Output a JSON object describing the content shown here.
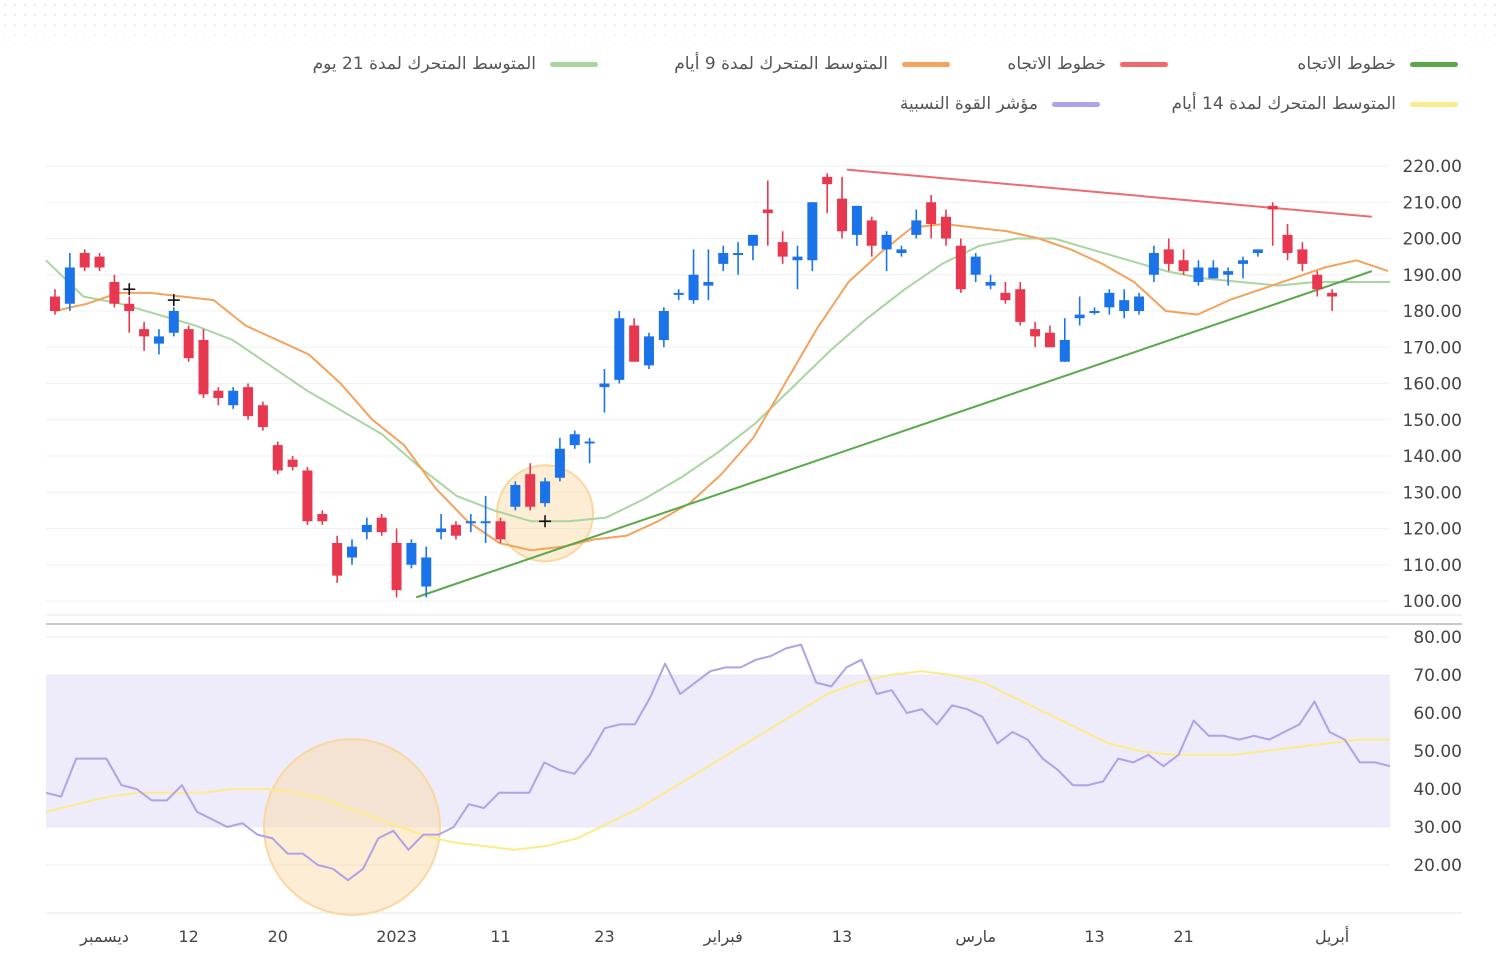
{
  "legend": [
    {
      "label": "خطوط الاتجاه",
      "color": "#5aa84b"
    },
    {
      "label": "خطوط الاتجاه",
      "color": "#ef6a6a"
    },
    {
      "label": "المتوسط المتحرك لمدة 9 أيام",
      "color": "#f4a25c"
    },
    {
      "label": "المتوسط المتحرك لمدة 21 يوم",
      "color": "#a8d5a0"
    },
    {
      "label": "المتوسط المتحرك لمدة 14 أيام",
      "color": "#fbeb8a"
    },
    {
      "label": "مؤشر القوة النسبية",
      "color": "#b0a2e6"
    }
  ],
  "colors": {
    "up": "#1a73e8",
    "down": "#e8384f",
    "ma9": "#f4a25c",
    "ma21": "#a8d5a0",
    "trend_up": "#5aa84b",
    "trend_down": "#ef6a6a",
    "rsi": "#b0a2e6",
    "rsi_ma": "#fbeb8a",
    "rsi_band": "#eeebfb",
    "highlight": "#fbd7a0"
  },
  "chart_data": {
    "type": "candlestick",
    "price_axis": {
      "ylim": [
        100,
        220
      ],
      "ticks": [
        "220.00",
        "210.00",
        "200.00",
        "190.00",
        "180.00",
        "170.00",
        "160.00",
        "150.00",
        "140.00",
        "130.00",
        "120.00",
        "110.00",
        "100.00"
      ]
    },
    "rsi_axis": {
      "ylim": [
        20,
        80
      ],
      "band": [
        30,
        70
      ],
      "ticks": [
        "80.00",
        "70.00",
        "60.00",
        "50.00",
        "40.00",
        "30.00",
        "20.00"
      ]
    },
    "x_labels": [
      {
        "label": "ديسمبر",
        "i": 3
      },
      {
        "label": "12",
        "i": 9
      },
      {
        "label": "20",
        "i": 15
      },
      {
        "label": "2023",
        "i": 23
      },
      {
        "label": "11",
        "i": 30
      },
      {
        "label": "23",
        "i": 37
      },
      {
        "label": "فبراير",
        "i": 45
      },
      {
        "label": "13",
        "i": 53
      },
      {
        "label": "مارس",
        "i": 62
      },
      {
        "label": "13",
        "i": 70
      },
      {
        "label": "21",
        "i": 76
      },
      {
        "label": "أبريل",
        "i": 86
      }
    ],
    "candles": [
      [
        184,
        180,
        186,
        179
      ],
      [
        182,
        192,
        196,
        180
      ],
      [
        196,
        192,
        197,
        191
      ],
      [
        195,
        192,
        196,
        191
      ],
      [
        188,
        182,
        190,
        181
      ],
      [
        182,
        180,
        184,
        174
      ],
      [
        175,
        173,
        177,
        169
      ],
      [
        171,
        173,
        175,
        168
      ],
      [
        174,
        180,
        181,
        173
      ],
      [
        175,
        167,
        176,
        166
      ],
      [
        172,
        157,
        175,
        156
      ],
      [
        158,
        156,
        159,
        154
      ],
      [
        154,
        158,
        159,
        153
      ],
      [
        159,
        151,
        160,
        150
      ],
      [
        154,
        148,
        155,
        147
      ],
      [
        143,
        136,
        144,
        135
      ],
      [
        139,
        137,
        140,
        136
      ],
      [
        136,
        122,
        137,
        121
      ],
      [
        124,
        122,
        125,
        121
      ],
      [
        116,
        107,
        118,
        105
      ],
      [
        112,
        115,
        117,
        110
      ],
      [
        119,
        121,
        123,
        117
      ],
      [
        123,
        119,
        124,
        118
      ],
      [
        116,
        103,
        120,
        101
      ],
      [
        110,
        116,
        117,
        109
      ],
      [
        104,
        112,
        115,
        101
      ],
      [
        119,
        120,
        124,
        117
      ],
      [
        121,
        118,
        122,
        117
      ],
      [
        122,
        122,
        124,
        119
      ],
      [
        122,
        122,
        129,
        116
      ],
      [
        122,
        117,
        123,
        116
      ],
      [
        126,
        132,
        133,
        125
      ],
      [
        135,
        126,
        138,
        125
      ],
      [
        127,
        133,
        134,
        126
      ],
      [
        134,
        142,
        145,
        133
      ],
      [
        143,
        146,
        147,
        142
      ],
      [
        144,
        144,
        145,
        138
      ],
      [
        159,
        160,
        164,
        152
      ],
      [
        161,
        178,
        180,
        160
      ],
      [
        176,
        166,
        178,
        166
      ],
      [
        165,
        173,
        174,
        164
      ],
      [
        172,
        180,
        181,
        170
      ],
      [
        185,
        185,
        186,
        183
      ],
      [
        183,
        190,
        197,
        182
      ],
      [
        187,
        188,
        197,
        183
      ],
      [
        193,
        196,
        198,
        191
      ],
      [
        196,
        196,
        199,
        190
      ],
      [
        198,
        201,
        201,
        194
      ],
      [
        208,
        207,
        216,
        198
      ],
      [
        199,
        195,
        202,
        193
      ],
      [
        194,
        195,
        198,
        186
      ],
      [
        194,
        210,
        210,
        191
      ],
      [
        217,
        215,
        218,
        207
      ],
      [
        211,
        202,
        217,
        200
      ],
      [
        201,
        209,
        209,
        198
      ],
      [
        205,
        198,
        206,
        195
      ],
      [
        197,
        201,
        202,
        191
      ],
      [
        196,
        197,
        198,
        195
      ],
      [
        201,
        205,
        208,
        200
      ],
      [
        210,
        204,
        212,
        200
      ],
      [
        206,
        200,
        208,
        198
      ],
      [
        198,
        186,
        200,
        185
      ],
      [
        190,
        195,
        196,
        188
      ],
      [
        187,
        188,
        190,
        186
      ],
      [
        185,
        183,
        188,
        182
      ],
      [
        186,
        177,
        188,
        176
      ],
      [
        175,
        173,
        177,
        170
      ],
      [
        174,
        170,
        176,
        170
      ],
      [
        166,
        172,
        178,
        166
      ],
      [
        178,
        179,
        184,
        176
      ],
      [
        180,
        180,
        181,
        179
      ],
      [
        181,
        185,
        186,
        179
      ],
      [
        180,
        183,
        186,
        178
      ],
      [
        180,
        184,
        185,
        179
      ],
      [
        190,
        196,
        198,
        188
      ],
      [
        197,
        193,
        200,
        191
      ],
      [
        194,
        191,
        197,
        190
      ],
      [
        188,
        192,
        194,
        187
      ],
      [
        189,
        192,
        194,
        189
      ],
      [
        190,
        191,
        192,
        187
      ],
      [
        193,
        194,
        195,
        189
      ],
      [
        196,
        197,
        197,
        195
      ],
      [
        209,
        208,
        210,
        198
      ],
      [
        201,
        196,
        204,
        194
      ],
      [
        197,
        193,
        199,
        191
      ],
      [
        190,
        186,
        191,
        184
      ],
      [
        185,
        184,
        186,
        180
      ]
    ],
    "ma9": [
      180,
      182,
      185,
      185,
      184,
      183,
      176,
      172,
      168,
      160,
      150,
      143,
      131,
      122,
      116,
      114,
      115,
      117,
      118,
      122,
      127,
      135,
      145,
      160,
      175,
      188,
      196,
      203,
      204,
      203,
      202,
      200,
      197,
      193,
      188,
      180,
      179,
      183,
      186,
      189,
      192,
      194,
      191
    ],
    "ma21": [
      194,
      184,
      182,
      179,
      176,
      172,
      165,
      158,
      152,
      146,
      137,
      129,
      125,
      122,
      122,
      123,
      128,
      134,
      141,
      149,
      159,
      169,
      178,
      186,
      193,
      198,
      200,
      200,
      197,
      194,
      191,
      189,
      188,
      187,
      188,
      188,
      188
    ],
    "trend_lines": [
      {
        "from": [
          25,
          101
        ],
        "to": [
          88,
          191
        ]
      },
      {
        "from": [
          54,
          219
        ],
        "to": [
          88,
          206
        ]
      }
    ],
    "rsi": [
      39,
      38,
      48,
      48,
      48,
      41,
      40,
      37,
      37,
      41,
      34,
      32,
      30,
      31,
      28,
      27,
      23,
      23,
      20,
      19,
      16,
      19,
      27,
      29,
      24,
      28,
      28,
      30,
      36,
      35,
      39,
      39,
      39,
      47,
      45,
      44,
      49,
      56,
      57,
      57,
      64,
      73,
      65,
      68,
      71,
      72,
      72,
      74,
      75,
      77,
      78,
      68,
      67,
      72,
      74,
      65,
      66,
      60,
      61,
      57,
      62,
      61,
      59,
      52,
      55,
      53,
      48,
      45,
      41,
      41,
      42,
      48,
      47,
      49,
      46,
      49,
      58,
      54,
      54,
      53,
      54,
      53,
      55,
      57,
      63,
      55,
      53,
      47,
      47,
      46
    ],
    "rsi_ma": [
      34,
      36,
      38,
      39,
      39,
      39,
      40,
      40,
      39,
      37,
      34,
      31,
      28,
      26,
      25,
      24,
      25,
      27,
      31,
      35,
      40,
      45,
      50,
      55,
      60,
      65,
      68,
      70,
      71,
      70,
      68,
      64,
      60,
      56,
      52,
      50,
      49,
      49,
      49,
      50,
      51,
      52,
      53,
      53
    ],
    "highlights": [
      {
        "panel": "price",
        "i": 33,
        "v": 122
      },
      {
        "panel": "rsi",
        "i": 20,
        "v": 30
      }
    ],
    "crosshair_markers": [
      {
        "i": 5,
        "v": 186
      },
      {
        "i": 8,
        "v": 183
      },
      {
        "i": 33,
        "v": 122
      }
    ]
  }
}
